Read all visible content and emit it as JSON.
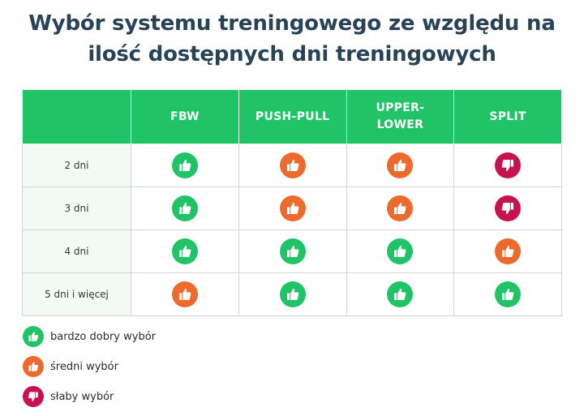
{
  "title": {
    "line1": "Wybór systemu treningowego ze względu na",
    "line2": "ilość dostępnych dni treningowych"
  },
  "colors": {
    "header_bg": "#20c365",
    "good": "#20c365",
    "average": "#ec6a2c",
    "poor": "#c8124f",
    "title": "#284256"
  },
  "table": {
    "columns": [
      "",
      "FBW",
      "PUSH-PULL",
      "UPPER-\nLOWER",
      "SPLIT"
    ],
    "rows": [
      {
        "label": "2 dni",
        "ratings": [
          "good",
          "average",
          "average",
          "poor"
        ]
      },
      {
        "label": "3 dni",
        "ratings": [
          "good",
          "average",
          "average",
          "poor"
        ]
      },
      {
        "label": "4 dni",
        "ratings": [
          "good",
          "good",
          "good",
          "average"
        ]
      },
      {
        "label": "5 dni i więcej",
        "ratings": [
          "average",
          "good",
          "good",
          "good"
        ]
      }
    ]
  },
  "legend": [
    {
      "key": "good",
      "icon": "thumbs-up-icon",
      "label": "bardzo dobry wybór"
    },
    {
      "key": "average",
      "icon": "thumbs-up-icon",
      "label": "średni wybór"
    },
    {
      "key": "poor",
      "icon": "thumbs-down-icon",
      "label": "słaby wybór"
    }
  ]
}
